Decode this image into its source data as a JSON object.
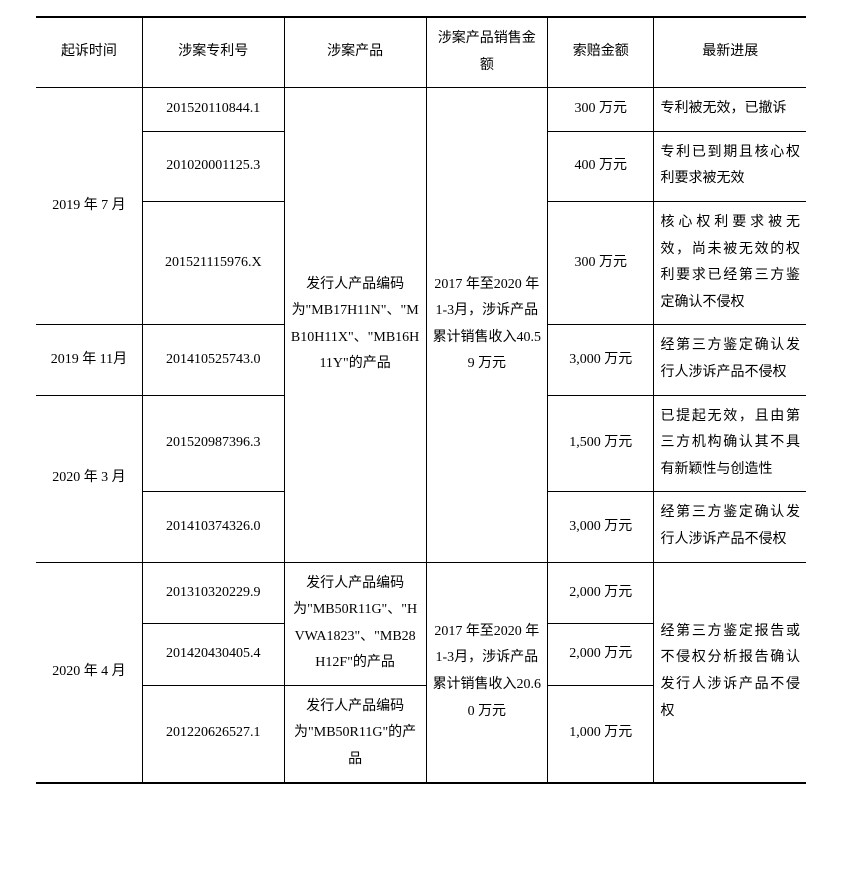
{
  "table": {
    "headers": [
      "起诉时间",
      "涉案专利号",
      "涉案产品",
      "涉案产品销售金额",
      "索赔金额",
      "最新进展"
    ],
    "product_block_1": "发行人产品编码为\"MB17H11N\"、\"MB10H11X\"、\"MB16H11Y\"的产品",
    "sales_block_1": "2017 年至2020 年 1-3月，涉诉产品累计销售收入40.59 万元",
    "product_block_2": "发行人产品编码为\"MB50R11G\"、\"HVWA1823\"、\"MB28H12F\"的产品",
    "product_block_3": "发行人产品编码为\"MB50R11G\"的产品",
    "sales_block_2": "2017 年至2020 年 1-3月，涉诉产品累计销售收入20.60 万元",
    "progress_block_2": "经第三方鉴定报告或不侵权分析报告确认发行人涉诉产品不侵权",
    "rows": [
      {
        "time": "2019 年 7 月",
        "patent": "201520110844.1",
        "claim": "300 万元",
        "progress": "专利被无效，已撤诉"
      },
      {
        "patent": "201020001125.3",
        "claim": "400 万元",
        "progress": "专利已到期且核心权利要求被无效"
      },
      {
        "patent": "201521115976.X",
        "claim": "300 万元",
        "progress": "核心权利要求被无效，尚未被无效的权利要求已经第三方鉴定确认不侵权"
      },
      {
        "time": "2019 年 11月",
        "patent": "201410525743.0",
        "claim": "3,000 万元",
        "progress": "经第三方鉴定确认发行人涉诉产品不侵权"
      },
      {
        "time": "2020 年 3 月",
        "patent": "201520987396.3",
        "claim": "1,500 万元",
        "progress": "已提起无效，且由第三方机构确认其不具有新颖性与创造性"
      },
      {
        "patent": "201410374326.0",
        "claim": "3,000 万元",
        "progress": "经第三方鉴定确认发行人涉诉产品不侵权"
      },
      {
        "time": "2020 年 4 月",
        "patent": "201310320229.9",
        "claim": "2,000 万元"
      },
      {
        "patent": "201420430405.4",
        "claim": "2,000 万元"
      },
      {
        "patent": "201220626527.1",
        "claim": "1,000 万元"
      }
    ]
  }
}
